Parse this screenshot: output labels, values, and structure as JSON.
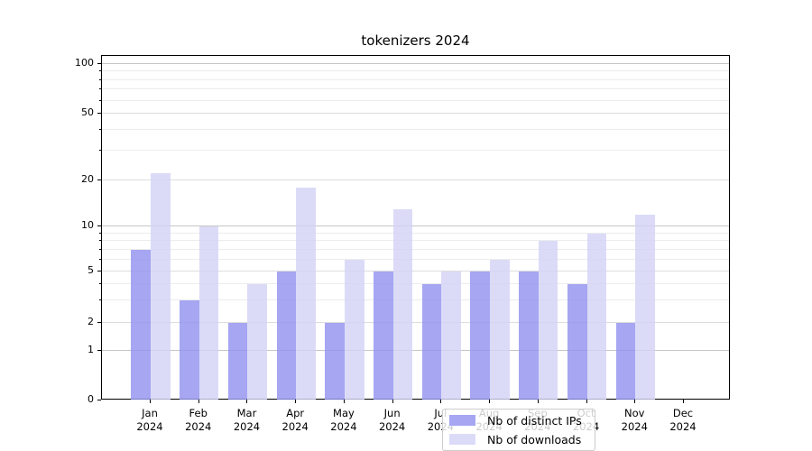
{
  "title": "tokenizers 2024",
  "chart_data": {
    "type": "bar",
    "title": "tokenizers 2024",
    "categories": [
      "Jan 2024",
      "Feb 2024",
      "Mar 2024",
      "Apr 2024",
      "May 2024",
      "Jun 2024",
      "Jul 2024",
      "Aug 2024",
      "Sep 2024",
      "Oct 2024",
      "Nov 2024",
      "Dec 2024"
    ],
    "series": [
      {
        "name": "Nb of distinct IPs",
        "color": "#a6a6f2",
        "values": [
          7,
          3,
          2,
          5,
          2,
          5,
          4,
          5,
          5,
          4,
          2,
          0
        ]
      },
      {
        "name": "Nb of downloads",
        "color": "#dbdbf8",
        "values": [
          22,
          10,
          4,
          18,
          6,
          13,
          5,
          6,
          8,
          9,
          12,
          0
        ]
      }
    ],
    "yscale": "symlog",
    "ylim": [
      0,
      113
    ],
    "y_major_ticks": [
      0,
      1,
      2,
      5,
      10,
      20,
      50,
      100
    ],
    "y_minor_gridlines": [
      3,
      4,
      6,
      7,
      8,
      9,
      30,
      40,
      60,
      70,
      80,
      90
    ],
    "xlabel": "",
    "ylabel": "",
    "grid": "horizontal major+minor",
    "legend_position": "lower center"
  },
  "legend": {
    "items": [
      {
        "label": "Nb of distinct IPs"
      },
      {
        "label": "Nb of downloads"
      }
    ]
  },
  "colors": {
    "ips_bar": "#a6a6f2",
    "downloads_bar": "#dbdbf8",
    "decade_gridline": "#c6c6c6",
    "labeled_gridline": "#dddddd",
    "minor_gridline": "#ececec",
    "axis": "#000000",
    "legend_border": "#cccccc"
  }
}
